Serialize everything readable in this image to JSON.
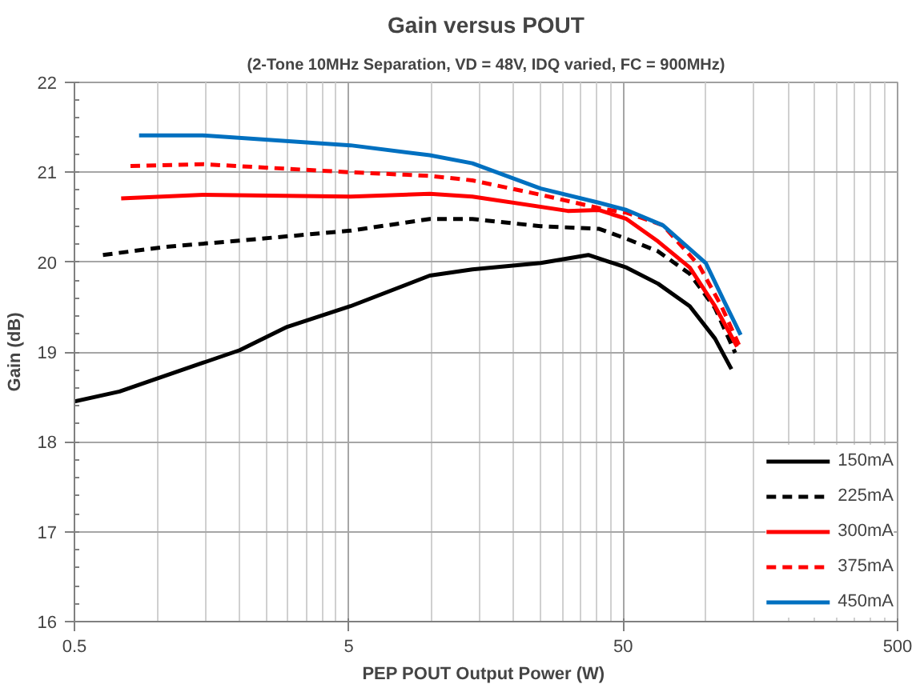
{
  "chart_data": {
    "type": "line",
    "title": "Gain versus POUT",
    "subtitle": "(2-Tone 10MHz Separation, VD = 48V, IDQ varied, FC = 900MHz)",
    "xlabel": "PEP POUT  Output Power (W)",
    "ylabel": "Gain (dB)",
    "log": "x",
    "xlim": [
      0.5,
      500
    ],
    "xticks": [
      0.5,
      5,
      50,
      500
    ],
    "ylim": [
      16,
      22
    ],
    "yticks": [
      16,
      17,
      18,
      19,
      20,
      21,
      22
    ],
    "grid": true,
    "legend": "bottom right",
    "series": [
      {
        "name": "150mA",
        "color": "#000000",
        "line_style": "solid",
        "x": [
          0.5,
          0.73,
          1.47,
          2.0,
          2.98,
          5.07,
          9.86,
          14.1,
          25,
          37.3,
          51.4,
          67,
          87.4,
          108,
          124
        ],
        "values": [
          18.45,
          18.56,
          18.88,
          19.02,
          19.28,
          19.51,
          19.85,
          19.92,
          19.99,
          20.08,
          19.94,
          19.76,
          19.51,
          19.15,
          18.81
        ]
      },
      {
        "name": "225mA",
        "color": "#000000",
        "line_style": "dashed",
        "x": [
          0.635,
          1.08,
          2.0,
          5.07,
          9.86,
          14.1,
          25,
          40.9,
          51.4,
          67,
          87.4,
          108,
          128
        ],
        "values": [
          20.08,
          20.17,
          20.24,
          20.35,
          20.48,
          20.48,
          20.4,
          20.37,
          20.26,
          20.12,
          19.87,
          19.49,
          18.99
        ]
      },
      {
        "name": "300mA",
        "color": "#ff0000",
        "line_style": "solid",
        "x": [
          0.74,
          1.47,
          5.07,
          9.86,
          14.1,
          31.4,
          40.9,
          51.4,
          67,
          87.4,
          108,
          130
        ],
        "values": [
          20.71,
          20.75,
          20.73,
          20.76,
          20.73,
          20.57,
          20.58,
          20.48,
          20.23,
          19.94,
          19.51,
          19.06
        ]
      },
      {
        "name": "375mA",
        "color": "#ff0000",
        "line_style": "dashed",
        "x": [
          0.8,
          1.47,
          5.07,
          9.86,
          14.1,
          25,
          40.9,
          51.4,
          69.8,
          94.6,
          114,
          132
        ],
        "values": [
          21.07,
          21.09,
          21.0,
          20.96,
          20.91,
          20.75,
          20.6,
          20.55,
          20.41,
          19.96,
          19.51,
          19.08
        ]
      },
      {
        "name": "450mA",
        "color": "#0070c0",
        "line_style": "solid",
        "x": [
          0.86,
          1.47,
          5.07,
          9.86,
          14.1,
          25,
          40.9,
          51.4,
          69.8,
          100,
          116,
          134
        ],
        "values": [
          21.41,
          21.41,
          21.3,
          21.19,
          21.1,
          20.82,
          20.66,
          20.58,
          20.41,
          19.99,
          19.58,
          19.19
        ]
      }
    ]
  }
}
